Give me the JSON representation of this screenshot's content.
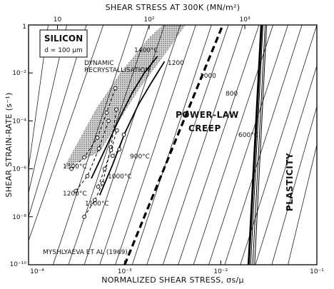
{
  "chart_data": {
    "type": "line",
    "title": "",
    "xlabel": "NORMALIZED SHEAR STRESS, σs/μ",
    "ylabel": "SHEAR STRAIN-RATE (s⁻¹)",
    "x2label": "SHEAR STRESS AT 300K (MN/m²)",
    "xscale": "log",
    "yscale": "log",
    "xlim": [
      0.0001,
      0.1
    ],
    "ylim": [
      1e-10,
      1
    ],
    "x_ticks": [
      {
        "v": 0.0001,
        "label": "10⁻⁴"
      },
      {
        "v": 0.001,
        "label": "10⁻³"
      },
      {
        "v": 0.01,
        "label": "10⁻²"
      },
      {
        "v": 0.1,
        "label": "10⁻¹"
      }
    ],
    "y_ticks": [
      {
        "v": 1,
        "label": "1"
      },
      {
        "v": 0.01,
        "label": "10⁻²"
      },
      {
        "v": 0.0001,
        "label": "10⁻⁴"
      },
      {
        "v": 1e-06,
        "label": "10⁻⁶"
      },
      {
        "v": 1e-08,
        "label": "10⁻⁸"
      },
      {
        "v": 1e-10,
        "label": "10⁻¹⁰"
      }
    ],
    "top_ticks": [
      {
        "v": 0.0002,
        "label": "10"
      },
      {
        "v": 0.0018,
        "label": "10²"
      },
      {
        "v": 0.0178,
        "label": "10³"
      }
    ],
    "grid": false,
    "material_box": {
      "line1": "SILICON",
      "line2": "d = 100 μm"
    },
    "region_labels": {
      "power_law": "POWER-LAW",
      "creep": "CREEP",
      "plasticity": "PLASTICITY",
      "dynamic": "DYNAMIC",
      "recryst": "RECRYSTALLISATION"
    },
    "reference": "MYSHLYAEVA ET AL (1969)",
    "isotherm_labels": [
      "1400°C",
      "1200",
      "1000",
      "800",
      "600°C"
    ],
    "data_temp_labels": [
      "1300°C",
      "1200°C",
      "1100°C",
      "1000°C",
      "900°C"
    ],
    "contours": [
      {
        "x": [
          0.00018,
          0.0012
        ],
        "y": [
          1e-10,
          1
        ]
      },
      {
        "x": [
          0.00026,
          0.0018
        ],
        "y": [
          1e-10,
          1
        ]
      },
      {
        "x": [
          0.00038,
          0.0026
        ],
        "y": [
          1e-10,
          1
        ]
      },
      {
        "x": [
          0.00055,
          0.0038
        ],
        "y": [
          1e-10,
          1
        ]
      },
      {
        "x": [
          0.0008,
          0.0055
        ],
        "y": [
          1e-10,
          1
        ]
      },
      {
        "x": [
          0.0012,
          0.008
        ],
        "y": [
          1e-10,
          1
        ]
      },
      {
        "x": [
          0.0017,
          0.012
        ],
        "y": [
          1e-10,
          1
        ]
      },
      {
        "x": [
          0.0025,
          0.017
        ],
        "y": [
          1e-10,
          1
        ]
      },
      {
        "x": [
          0.0036,
          0.025
        ],
        "y": [
          1e-10,
          1
        ]
      },
      {
        "x": [
          0.0052,
          0.035
        ],
        "y": [
          1e-10,
          1
        ]
      },
      {
        "x": [
          0.0075,
          0.05
        ],
        "y": [
          1e-10,
          1
        ]
      },
      {
        "x": [
          0.011,
          0.07
        ],
        "y": [
          1e-10,
          1
        ]
      },
      {
        "x": [
          0.016,
          0.1
        ],
        "y": [
          1e-10,
          1
        ]
      },
      {
        "x": [
          0.023,
          0.1
        ],
        "y": [
          1e-10,
          0.02
        ]
      },
      {
        "x": [
          0.034,
          0.1
        ],
        "y": [
          1e-10,
          0.0004
        ]
      },
      {
        "x": [
          0.05,
          0.1
        ],
        "y": [
          1e-10,
          1e-05
        ]
      },
      {
        "x": [
          0.0001,
          0.0006
        ],
        "y": [
          1e-09,
          1
        ]
      },
      {
        "x": [
          0.0001,
          0.0004
        ],
        "y": [
          1e-08,
          1
        ]
      },
      {
        "x": [
          0.0001,
          0.00025
        ],
        "y": [
          1e-07,
          1
        ]
      },
      {
        "x": [
          0.0001,
          0.00016
        ],
        "y": [
          1e-06,
          1
        ]
      }
    ],
    "boundary_dashed": {
      "x": [
        0.001,
        0.0105
      ],
      "y": [
        1e-10,
        1
      ]
    },
    "boundary_plasticity": [
      {
        "x": [
          0.0195,
          0.0265
        ],
        "y": [
          1e-10,
          1
        ]
      },
      {
        "x": [
          0.0205,
          0.0275
        ],
        "y": [
          1e-10,
          1
        ]
      },
      {
        "x": [
          0.0215,
          0.029
        ],
        "y": [
          1e-10,
          1
        ]
      },
      {
        "x": [
          0.0225,
          0.03
        ],
        "y": [
          1e-10,
          1
        ]
      }
    ],
    "hatched_band": {
      "upper": [
        [
          0.00023,
          1e-06
        ],
        [
          0.0005,
          0.0003
        ],
        [
          0.0009,
          0.01
        ],
        [
          0.0018,
          0.3
        ],
        [
          0.0025,
          1
        ]
      ],
      "lower": [
        [
          0.0043,
          1
        ],
        [
          0.0027,
          0.07
        ],
        [
          0.0014,
          0.002
        ],
        [
          0.00055,
          5e-06
        ],
        [
          0.00023,
          1e-06
        ]
      ]
    },
    "isotherms": [
      {
        "x": [
          0.00045,
          0.00065,
          0.0009,
          0.0012,
          0.0016,
          0.0022
        ],
        "y": [
          4e-07,
          9e-06,
          0.00015,
          0.0015,
          0.01,
          0.05
        ]
      },
      {
        "x": [
          0.00055,
          0.00075,
          0.001,
          0.0014,
          0.0019,
          0.0026
        ],
        "y": [
          8e-08,
          1.5e-06,
          3e-05,
          0.0005,
          0.004,
          0.03
        ]
      }
    ],
    "series": [
      {
        "x": [
          0.00028,
          0.00038,
          0.00052,
          0.00065,
          0.0008
        ],
        "y": [
          1e-06,
          3e-06,
          2e-05,
          0.00022,
          0.0023
        ]
      },
      {
        "x": [
          0.00031,
          0.00041,
          0.00054,
          0.00068
        ],
        "y": [
          1.2e-07,
          5e-07,
          7e-06,
          0.0001
        ]
      },
      {
        "x": [
          0.00038,
          0.00049,
          0.00059,
          0.00072,
          0.00082
        ],
        "y": [
          1e-08,
          5e-08,
          2.5e-07,
          8e-06,
          0.0003
        ]
      },
      {
        "x": [
          0.00053,
          0.00062,
          0.00072,
          0.00083
        ],
        "y": [
          1.8e-07,
          1e-06,
          6e-06,
          4e-05
        ]
      },
      {
        "x": [
          0.00075,
          0.00088,
          0.00098
        ],
        "y": [
          3.5e-06,
          6.5e-06,
          2.65e-05
        ]
      }
    ]
  }
}
